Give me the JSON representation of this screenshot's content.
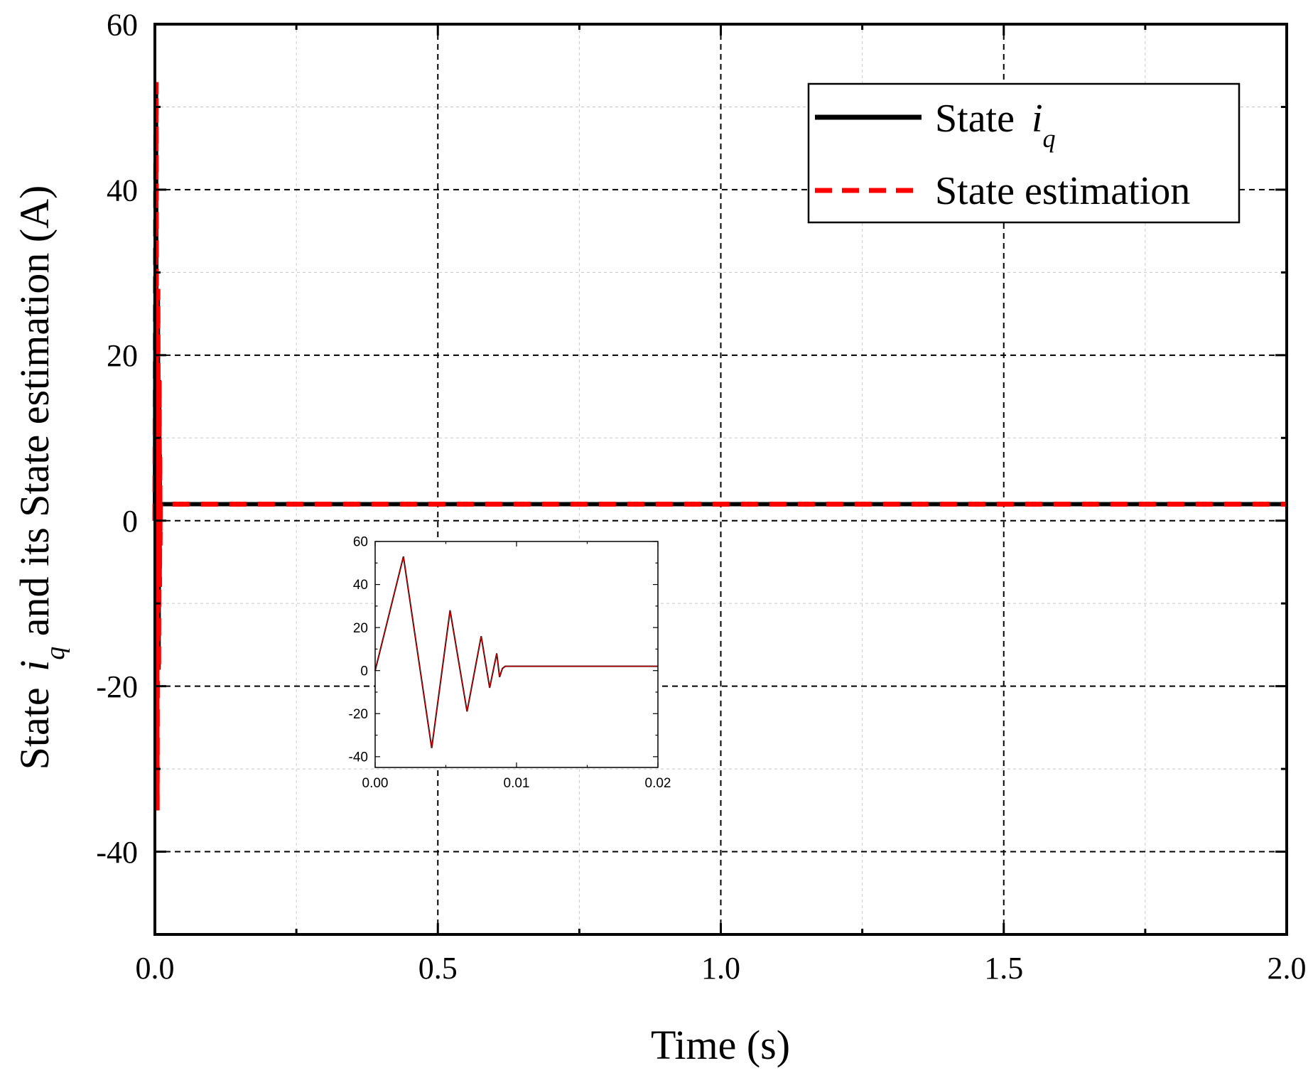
{
  "chart_data": [
    {
      "id": "main",
      "type": "line",
      "xlabel": "Time (s)",
      "ylabel": {
        "prefix": "State ",
        "var": "i",
        "sub": "q",
        "suffix": " and its State estimation (A)"
      },
      "xlim": [
        0,
        2.0
      ],
      "ylim": [
        -50,
        60
      ],
      "xticks": [
        0.0,
        0.5,
        1.0,
        1.5,
        2.0
      ],
      "xtick_labels": [
        "0.0",
        "0.5",
        "1.0",
        "1.5",
        "2.0"
      ],
      "yticks": [
        -40,
        -20,
        0,
        20,
        40,
        60
      ],
      "ytick_labels": [
        "-40",
        "-20",
        "0",
        "20",
        "40",
        "60"
      ],
      "grid": true,
      "legend_position": "top-right",
      "legend": [
        {
          "name": "State ",
          "var": "i",
          "sub": "q",
          "style": "solid"
        },
        {
          "name": "State estimation",
          "style": "dashed"
        }
      ],
      "series": [
        {
          "name": "State iq",
          "color": "#000000",
          "x": [
            0,
            0.002,
            0.004,
            0.0053,
            0.0066,
            0.0076,
            0.0082,
            0.0087,
            0.0091,
            0.0095,
            0.0105,
            0.015,
            0.02,
            2.0
          ],
          "y": [
            0,
            53,
            -35,
            28,
            -18,
            17,
            -8,
            8,
            -3,
            2,
            2,
            2,
            2,
            2
          ]
        },
        {
          "name": "State estimation",
          "color": "#ff0000",
          "x": [
            0,
            0.002,
            0.004,
            0.0053,
            0.0066,
            0.0076,
            0.0082,
            0.0087,
            0.0091,
            0.0095,
            0.0105,
            0.015,
            0.02,
            2.0
          ],
          "y": [
            0,
            53,
            -35,
            28,
            -18,
            17,
            -8,
            8,
            -3,
            2,
            2,
            2,
            2,
            2
          ]
        }
      ]
    },
    {
      "id": "inset",
      "type": "line",
      "xlim": [
        0,
        0.02
      ],
      "ylim": [
        -45,
        60
      ],
      "xticks": [
        0.0,
        0.01,
        0.02
      ],
      "xtick_labels": [
        "0.00",
        "0.01",
        "0.02"
      ],
      "yticks": [
        -40,
        -20,
        0,
        20,
        40,
        60
      ],
      "ytick_labels": [
        "-40",
        "-20",
        "0",
        "20",
        "40",
        "60"
      ],
      "series": [
        {
          "name": "State iq",
          "color": "#000000",
          "x": [
            0,
            0.002,
            0.004,
            0.0053,
            0.0065,
            0.0075,
            0.0081,
            0.0086,
            0.0088,
            0.009,
            0.0092,
            0.01,
            0.015,
            0.02
          ],
          "y": [
            0,
            53,
            -36,
            28,
            -19,
            16,
            -8,
            8,
            -3,
            1,
            2,
            2,
            2,
            2
          ]
        },
        {
          "name": "State estimation",
          "color": "#cc0000",
          "x": [
            0,
            0.002,
            0.004,
            0.0053,
            0.0065,
            0.0075,
            0.0081,
            0.0086,
            0.0088,
            0.009,
            0.0092,
            0.01,
            0.015,
            0.02
          ],
          "y": [
            0,
            53,
            -36,
            28,
            -19,
            16,
            -8,
            8,
            -3,
            1,
            2,
            2,
            2,
            2
          ]
        }
      ]
    }
  ]
}
